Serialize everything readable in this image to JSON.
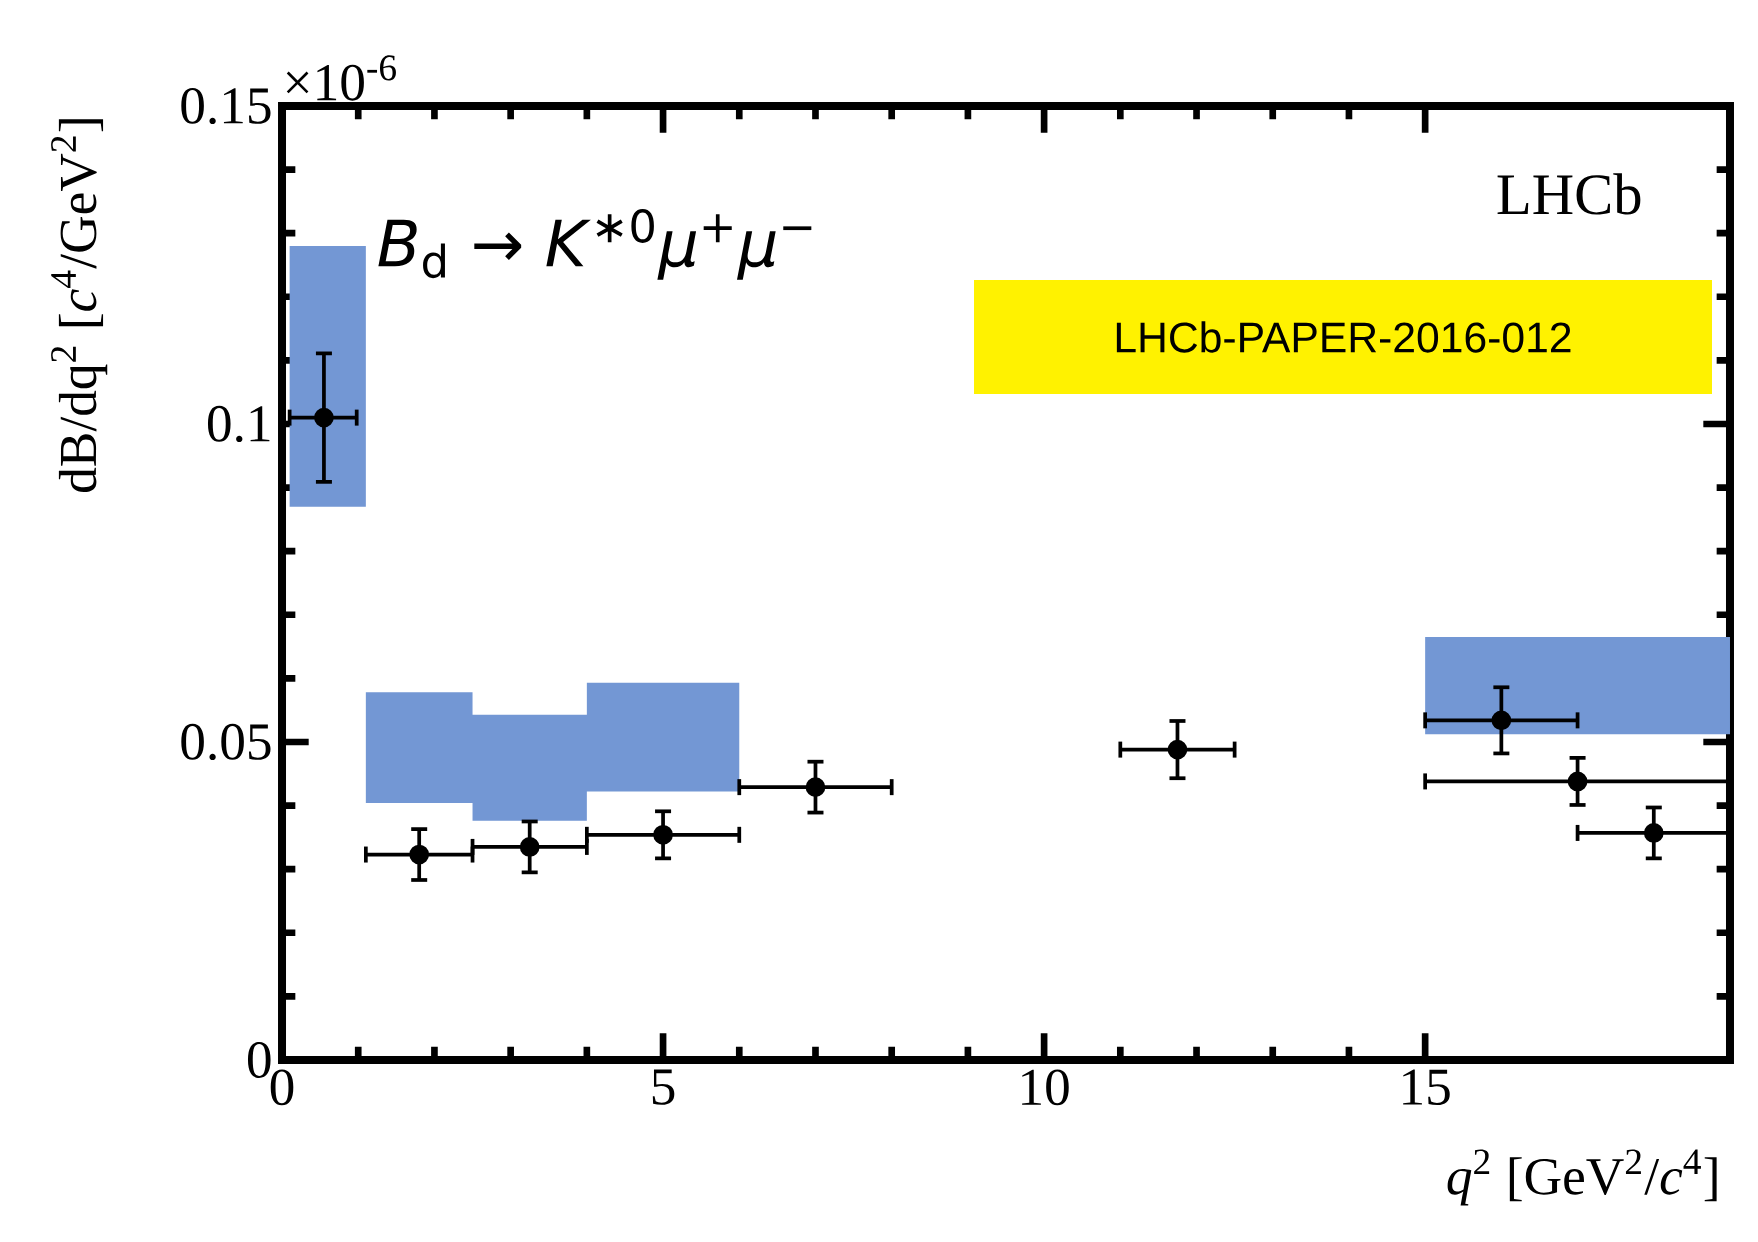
{
  "chart_data": {
    "type": "scatter",
    "xlabel": "*q*$^{2}$ [GeV$^{2}$/*c*$^{4}$]",
    "ylabel": "dB/dq$^{2}$ [*c*$^{4}$/GeV$^{2}$]",
    "annotations": [
      "×10$^{-6}$",
      "LHCb",
      "LHCb-PAPER-2016-012",
      "*B*$_{d}$ → *K*$^{∗0}$*μ*$^{+}$*μ*$^{−}$"
    ],
    "xlim": [
      0,
      19
    ],
    "ylim": [
      0,
      0.15
    ],
    "xticks": [
      0,
      5,
      10,
      15
    ],
    "yticks": [
      0,
      0.05,
      {
        "value": 0.1,
        "label": "0.1"
      },
      0.15
    ],
    "grid": false,
    "marker": "circle",
    "series": [
      {
        "type": "area",
        "color": "#7397d4",
        "x": [
          0.1,
          1.1,
          1.1,
          2.5,
          2.5,
          4,
          4,
          6
        ],
        "values": [
          null,
          null,
          null,
          null,
          null,
          null,
          null,
          null
        ],
        "lower": [
          0.087,
          0.087,
          0.0404,
          0.0404,
          0.0376,
          0.0376,
          0.0422,
          0.0422
        ],
        "upper": [
          0.128,
          0.128,
          0.0578,
          0.0578,
          0.0543,
          0.0543,
          0.0593,
          0.0593
        ]
      },
      {
        "type": "area",
        "color": "#7397d4",
        "x": [
          15,
          19
        ],
        "values": [
          null,
          null
        ],
        "lower": [
          0.0512,
          0.0512
        ],
        "upper": [
          0.0665,
          0.0665
        ]
      },
      {
        "color": "#000000",
        "x": [
          0.55,
          1.8,
          3.25,
          5,
          7,
          11.75,
          16,
          17,
          18
        ],
        "values": [
          0.101,
          0.0323,
          0.0335,
          0.0354,
          0.0429,
          0.0488,
          0.0534,
          0.0438,
          0.0357
        ],
        "errors": [
          0.0101,
          0.004,
          0.004,
          0.0037,
          0.004,
          0.0045,
          0.0052,
          0.0037,
          0.004
        ],
        "xerrors": [
          [
            0.1,
            0.98
          ],
          [
            1.1,
            2.5
          ],
          [
            2.5,
            4
          ],
          [
            4,
            6
          ],
          [
            6,
            8
          ],
          [
            11,
            12.5
          ],
          [
            15,
            17
          ],
          [
            15,
            19
          ],
          [
            17,
            19
          ]
        ]
      }
    ]
  }
}
